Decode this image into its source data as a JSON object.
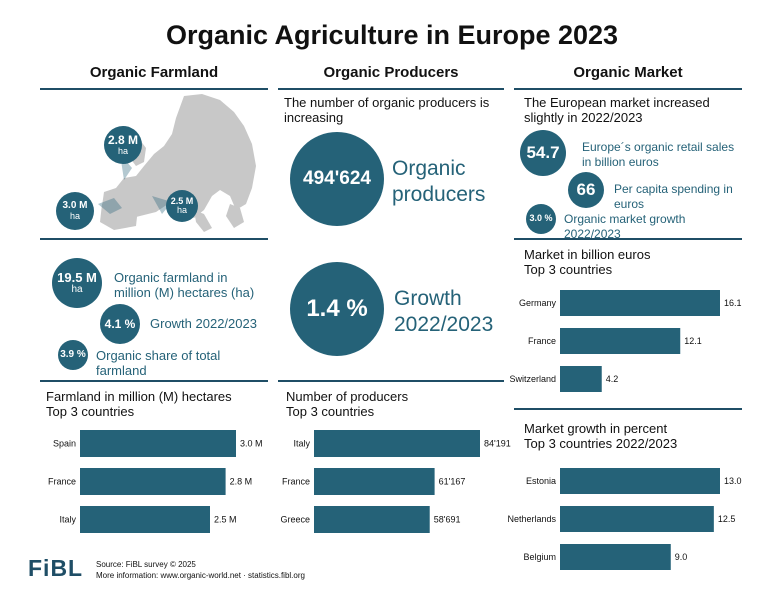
{
  "title": "Organic Agriculture in Europe 2023",
  "columns": {
    "farmland": "Organic Farmland",
    "producers": "Organic Producers",
    "market": "Organic Market"
  },
  "colors": {
    "accent": "#256278",
    "rule": "#1f4e66",
    "map_land": "#c8c8c8"
  },
  "map": {
    "north": {
      "value": "2.8 M",
      "unit": "ha"
    },
    "west": {
      "value": "3.0 M",
      "unit": "ha"
    },
    "south": {
      "value": "2.5 M",
      "unit": "ha"
    }
  },
  "farmland": {
    "area": {
      "value": "19.5 M",
      "unit": "ha",
      "label": "Organic farmland in million (M) hectares (ha)"
    },
    "growth": {
      "value": "4.1 %",
      "label": "Growth 2022/2023"
    },
    "share": {
      "value": "3.9 %",
      "label": "Organic share of total farmland"
    }
  },
  "producers": {
    "intro": "The number of organic producers is increasing",
    "count": {
      "value": "494'624",
      "label_line1": "Organic",
      "label_line2": "producers"
    },
    "growth": {
      "value": "1.4 %",
      "label_line1": "Growth",
      "label_line2": "2022/2023"
    }
  },
  "market": {
    "intro": "The European market increased slightly in 2022/2023",
    "sales": {
      "value": "54.7",
      "label": "Europe´s organic retail sales in billion euros"
    },
    "per_capita": {
      "value": "66",
      "label": "Per capita spending in euros"
    },
    "growth": {
      "value": "3.0 %",
      "label": "Organic market growth 2022/2023"
    }
  },
  "chart_data": [
    {
      "type": "bar",
      "id": "farmland",
      "title_line1": "Farmland in million (M) hectares",
      "title_line2": "Top 3 countries",
      "categories": [
        "Spain",
        "France",
        "Italy"
      ],
      "values": [
        3.0,
        2.8,
        2.5
      ],
      "labels": [
        "3.0 M",
        "2.8 M",
        "2.5 M"
      ],
      "xlim": [
        0,
        3.0
      ]
    },
    {
      "type": "bar",
      "id": "producers",
      "title_line1": "Number of producers",
      "title_line2": "Top 3 countries",
      "categories": [
        "Italy",
        "France",
        "Greece"
      ],
      "values": [
        84191,
        61167,
        58691
      ],
      "labels": [
        "84'191",
        "61'167",
        "58'691"
      ],
      "xlim": [
        0,
        84191
      ]
    },
    {
      "type": "bar",
      "id": "market",
      "title_line1": "Market in billion euros",
      "title_line2": "Top 3 countries",
      "categories": [
        "Germany",
        "France",
        "Switzerland"
      ],
      "values": [
        16.1,
        12.1,
        4.2
      ],
      "labels": [
        "16.1",
        "12.1",
        "4.2"
      ],
      "xlim": [
        0,
        16.1
      ]
    },
    {
      "type": "bar",
      "id": "market-growth",
      "title_line1": "Market growth in percent",
      "title_line2": "Top 3 countries 2022/2023",
      "categories": [
        "Estonia",
        "Netherlands",
        "Belgium"
      ],
      "values": [
        13.0,
        12.5,
        9.0
      ],
      "labels": [
        "13.0",
        "12.5",
        "9.0"
      ],
      "xlim": [
        0,
        13.0
      ]
    }
  ],
  "footer": {
    "logo": "FiBL",
    "source": "Source: FiBL survey © 2025",
    "more": "More information: www.organic-world.net · statistics.fibl.org"
  }
}
